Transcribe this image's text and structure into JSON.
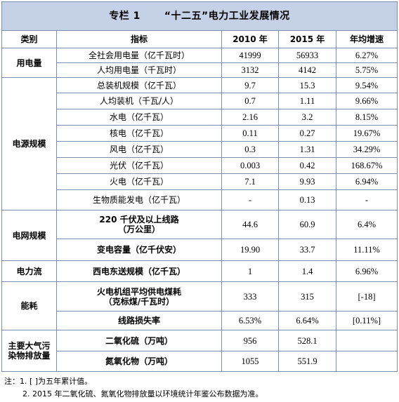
{
  "title": {
    "prefix": "专栏 1",
    "text": "“十二五”电力工业发展情况"
  },
  "headers": {
    "category": "类别",
    "indicator": "指标",
    "y2010": "2010 年",
    "y2015": "2015 年",
    "growth": "年均增速"
  },
  "groups": {
    "g0": "用电量",
    "g1": "电源规模",
    "g2": "电网规模",
    "g3": "电力流",
    "g4": "能耗",
    "g5_line1": "主要大气污",
    "g5_line2": "染物排放量"
  },
  "rows": [
    {
      "indicator": "全社会用电量（亿千瓦时）",
      "v2010": "41999",
      "v2015": "56933",
      "growth": "6.27%"
    },
    {
      "indicator": "人均用电量（千瓦时）",
      "v2010": "3132",
      "v2015": "4142",
      "growth": "5.75%"
    },
    {
      "indicator": "总装机规模（亿千瓦）",
      "v2010": "9.7",
      "v2015": "15.3",
      "growth": "9.54%"
    },
    {
      "indicator": "人均装机（千瓦/人）",
      "v2010": "0.7",
      "v2015": "1.11",
      "growth": "9.66%"
    },
    {
      "indicator": "水电（亿千瓦）",
      "v2010": "2.16",
      "v2015": "3.2",
      "growth": "8.15%"
    },
    {
      "indicator": "核电（亿千瓦）",
      "v2010": "0.11",
      "v2015": "0.27",
      "growth": "19.67%"
    },
    {
      "indicator": "风电（亿千瓦）",
      "v2010": "0.3",
      "v2015": "1.31",
      "growth": "34.29%"
    },
    {
      "indicator": "光伏（亿千瓦）",
      "v2010": "0.003",
      "v2015": "0.42",
      "growth": "168.67%"
    },
    {
      "indicator": "火电（亿千瓦）",
      "v2010": "7.1",
      "v2015": "9.93",
      "growth": "6.94%"
    },
    {
      "indicator": "生物质能发电（亿千瓦）",
      "v2010": "-",
      "v2015": "0.13",
      "growth": "-"
    },
    {
      "indicator_line1": "220 千伏及以上线路",
      "indicator_line2": "（万公里）",
      "v2010": "44.6",
      "v2015": "60.9",
      "growth": "6.4%"
    },
    {
      "indicator": "变电容量（亿千伏安）",
      "v2010": "19.90",
      "v2015": "33.7",
      "growth": "11.11%"
    },
    {
      "indicator": "西电东送规模（亿千瓦）",
      "v2010": "1",
      "v2015": "1.4",
      "growth": "6.96%"
    },
    {
      "indicator_line1": "火电机组平均供电煤耗",
      "indicator_line2": "（克标煤/千瓦时）",
      "v2010": "333",
      "v2015": "315",
      "growth": "[-18]"
    },
    {
      "indicator": "线路损失率",
      "v2010": "6.53%",
      "v2015": "6.64%",
      "growth": "[0.11%]"
    },
    {
      "indicator": "二氧化硫（万吨）",
      "v2010": "956",
      "v2015": "528.1",
      "growth": ""
    },
    {
      "indicator": "氮氧化物（万吨）",
      "v2010": "1055",
      "v2015": "551.9",
      "growth": ""
    }
  ],
  "notes": {
    "n1": "注：1. [ ]为五年累计值。",
    "n2": "2. 2015 年二氧化硫、氮氧化物排放量以环境统计年鉴公布数据为准。"
  }
}
